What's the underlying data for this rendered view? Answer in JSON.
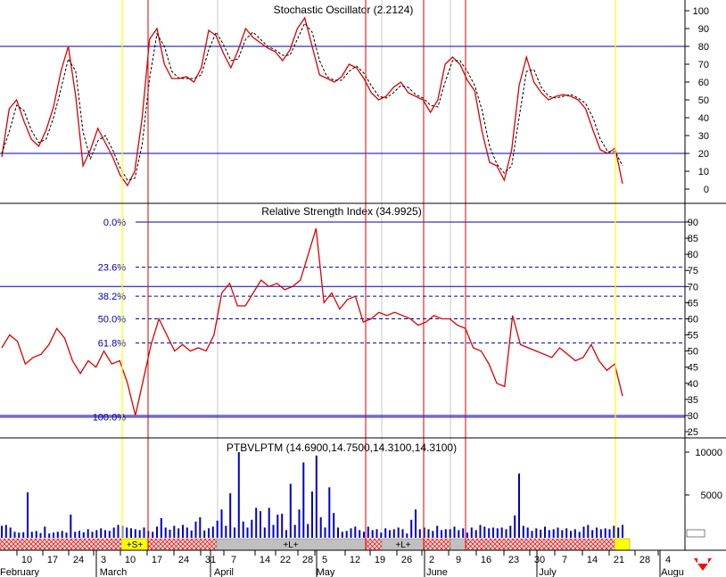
{
  "chart_data": [
    {
      "type": "line",
      "title": "Stochastic Oscillator (2.2124)",
      "ylim": [
        -5,
        108
      ],
      "yticks": [
        0,
        10,
        20,
        30,
        40,
        50,
        60,
        70,
        80,
        90,
        100
      ],
      "ref_lines": [
        20,
        80
      ],
      "series": [
        {
          "values": [
            18,
            45,
            50,
            38,
            28,
            24,
            33,
            46,
            66,
            80,
            52,
            13,
            22,
            34,
            26,
            18,
            8,
            2,
            10,
            40,
            84,
            90,
            70,
            62,
            62,
            63,
            60,
            68,
            89,
            86,
            76,
            68,
            78,
            90,
            85,
            82,
            79,
            77,
            72,
            78,
            90,
            96,
            80,
            64,
            62,
            60,
            63,
            70,
            68,
            62,
            54,
            50,
            52,
            57,
            60,
            54,
            52,
            50,
            43,
            50,
            70,
            74,
            70,
            61,
            55,
            32,
            15,
            13,
            5,
            22,
            58,
            74,
            60,
            54,
            50,
            52,
            53,
            52,
            50,
            45,
            33,
            22,
            20,
            23,
            3
          ],
          "color": "#dd0000"
        },
        {
          "values": [
            20,
            32,
            47,
            44,
            33,
            26,
            28,
            40,
            56,
            73,
            66,
            32,
            17,
            27,
            30,
            22,
            12,
            5,
            6,
            25,
            62,
            87,
            80,
            66,
            62,
            62,
            62,
            64,
            78,
            88,
            81,
            72,
            73,
            84,
            88,
            84,
            80,
            78,
            75,
            75,
            84,
            93,
            88,
            72,
            63,
            61,
            61,
            66,
            69,
            65,
            58,
            52,
            51,
            54,
            58,
            57,
            53,
            51,
            47,
            46,
            60,
            72,
            72,
            66,
            58,
            44,
            24,
            14,
            9,
            13,
            40,
            66,
            67,
            57,
            52,
            51,
            52,
            53,
            51,
            48,
            40,
            28,
            21,
            21,
            13
          ],
          "color": "#000000",
          "dashed": true
        }
      ]
    },
    {
      "type": "line",
      "title": "Relative Strength Index (34.9925)",
      "ylim": [
        22,
        95
      ],
      "yticks": [
        25,
        30,
        35,
        40,
        45,
        50,
        55,
        60,
        65,
        70,
        75,
        80,
        85,
        90
      ],
      "ref_lines": [
        30,
        70
      ],
      "fib_levels": [
        {
          "label": "0.0%",
          "value": 90
        },
        {
          "label": "23.6%",
          "value": 76
        },
        {
          "label": "38.2%",
          "value": 67
        },
        {
          "label": "50.0%",
          "value": 60
        },
        {
          "label": "61.8%",
          "value": 52.5
        },
        {
          "label": "100.0%",
          "value": 29.5
        }
      ],
      "series": [
        {
          "values": [
            51,
            55,
            53,
            46,
            48,
            49,
            52,
            57,
            54,
            47,
            43,
            47,
            45,
            50,
            46,
            47,
            40,
            30,
            41,
            52,
            60,
            55,
            50,
            52,
            50,
            51,
            50,
            55,
            68,
            71,
            64,
            64,
            68,
            72,
            70,
            71,
            69,
            70,
            72,
            80,
            88,
            65,
            68,
            63,
            66,
            67,
            59,
            60,
            62,
            61,
            62,
            61,
            60,
            58,
            59,
            61,
            60,
            60,
            58,
            57,
            51,
            50,
            46,
            40,
            39,
            61,
            52,
            51,
            50,
            49,
            48,
            51,
            49,
            47,
            48,
            52,
            47,
            44,
            46,
            36
          ],
          "color": "#dd0000"
        }
      ]
    },
    {
      "type": "bar",
      "title": "PTBVLPTM (14.6900,14.7500,14.3100,14.3100)",
      "ylim": [
        0,
        11000
      ],
      "yticks": [
        5000,
        10000
      ],
      "ytick_labels": [
        "5000",
        "10000"
      ],
      "values": [
        1400,
        1500,
        1200,
        700,
        600,
        650,
        5300,
        700,
        800,
        550,
        1300,
        500,
        600,
        700,
        800,
        600,
        2700,
        700,
        800,
        650,
        1000,
        700,
        900,
        1100,
        900,
        800,
        1200,
        1500,
        1400,
        1200,
        1100,
        1000,
        900,
        1200,
        800,
        700,
        1300,
        2300,
        1200,
        950,
        1400,
        1100,
        1500,
        1200,
        850,
        1900,
        2400,
        850,
        1100,
        1300,
        2000,
        3300,
        1400,
        5200,
        1200,
        10000,
        1900,
        1200,
        2100,
        3500,
        3100,
        1200,
        3500,
        1500,
        2700,
        2800,
        900,
        6300,
        1500,
        3300,
        8800,
        1600,
        5400,
        9600,
        2400,
        1200,
        5900,
        2900,
        1200,
        700,
        800,
        1100,
        1300,
        900,
        700,
        1300,
        900,
        1000,
        600,
        1100,
        900,
        1000,
        1200,
        1000,
        500,
        2100,
        3300,
        1000,
        1200,
        1000,
        800,
        1400,
        900,
        1000,
        1000,
        1300,
        900,
        1100,
        600,
        1200,
        900,
        1500,
        1300,
        1100,
        1200,
        1100,
        1200,
        1000,
        1400,
        2600,
        7500,
        1400,
        1200,
        800,
        1100,
        950,
        1300,
        900,
        1000,
        1200,
        900,
        1100,
        800,
        1000,
        700,
        1300,
        1500,
        900,
        1200,
        1000,
        1100,
        1000,
        1400,
        1200,
        1500
      ],
      "color": "#0000cc"
    }
  ],
  "x_axis": {
    "day_labels": [
      "10",
      "17",
      "24",
      "3",
      "10",
      "17",
      "24",
      "31",
      "7",
      "14",
      "22",
      "28",
      "5",
      "12",
      "19",
      "26",
      "2",
      "9",
      "16",
      "23",
      "30",
      "7",
      "14",
      "21",
      "28",
      "4"
    ],
    "month_labels": [
      "February",
      "March",
      "April",
      "May",
      "June",
      "July",
      "Augu"
    ]
  },
  "band_labels": [
    "+S+",
    "+L+",
    "+L+"
  ],
  "colors": {
    "signal_red": "#dd0000",
    "grid_blue": "#0000aa",
    "highlight_yellow": "#ffff00"
  }
}
